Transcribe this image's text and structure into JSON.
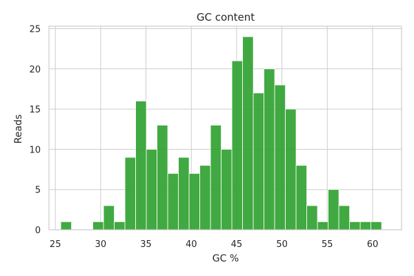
{
  "chart_data": {
    "type": "bar",
    "title": "GC content",
    "xlabel": "GC %",
    "ylabel": "Reads",
    "bar_color": "#2ca02c",
    "grid": true,
    "xlim": [
      24.3,
      63.2
    ],
    "ylim": [
      0,
      25.3
    ],
    "xticks": [
      25,
      30,
      35,
      40,
      45,
      50,
      55,
      60
    ],
    "yticks": [
      0,
      5,
      10,
      15,
      20,
      25
    ],
    "bin_width": 1.18,
    "bins": [
      {
        "x_start": 25.6,
        "count": 1
      },
      {
        "x_start": 26.78,
        "count": 0
      },
      {
        "x_start": 27.96,
        "count": 0
      },
      {
        "x_start": 29.14,
        "count": 1
      },
      {
        "x_start": 30.32,
        "count": 3
      },
      {
        "x_start": 31.5,
        "count": 1
      },
      {
        "x_start": 32.68,
        "count": 9
      },
      {
        "x_start": 33.86,
        "count": 16
      },
      {
        "x_start": 35.04,
        "count": 10
      },
      {
        "x_start": 36.22,
        "count": 13
      },
      {
        "x_start": 37.4,
        "count": 7
      },
      {
        "x_start": 38.58,
        "count": 9
      },
      {
        "x_start": 39.76,
        "count": 7
      },
      {
        "x_start": 40.94,
        "count": 8
      },
      {
        "x_start": 42.12,
        "count": 13
      },
      {
        "x_start": 43.3,
        "count": 10
      },
      {
        "x_start": 44.48,
        "count": 21
      },
      {
        "x_start": 45.66,
        "count": 24
      },
      {
        "x_start": 46.84,
        "count": 17
      },
      {
        "x_start": 48.02,
        "count": 20
      },
      {
        "x_start": 49.2,
        "count": 18
      },
      {
        "x_start": 50.38,
        "count": 15
      },
      {
        "x_start": 51.56,
        "count": 8
      },
      {
        "x_start": 52.74,
        "count": 3
      },
      {
        "x_start": 53.92,
        "count": 1
      },
      {
        "x_start": 55.1,
        "count": 5
      },
      {
        "x_start": 56.28,
        "count": 3
      },
      {
        "x_start": 57.46,
        "count": 1
      },
      {
        "x_start": 58.64,
        "count": 1
      },
      {
        "x_start": 59.82,
        "count": 1
      }
    ]
  }
}
